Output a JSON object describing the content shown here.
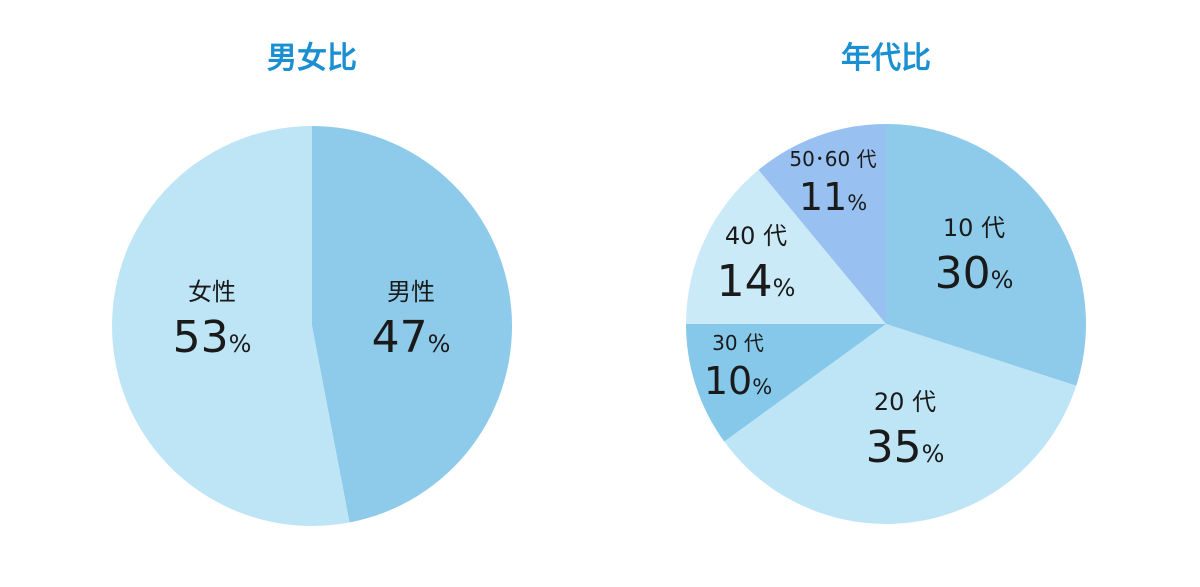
{
  "chart_data": [
    {
      "type": "pie",
      "title": "男女比",
      "slices": [
        {
          "label": "男性",
          "value": 47,
          "display": "47",
          "unit": "%",
          "color": "#8ecbea"
        },
        {
          "label": "女性",
          "value": 53,
          "display": "53",
          "unit": "%",
          "color": "#bee5f6"
        }
      ]
    },
    {
      "type": "pie",
      "title": "年代比",
      "slices": [
        {
          "label": "10 代",
          "value": 30,
          "display": "30",
          "unit": "%",
          "color": "#8ecbea"
        },
        {
          "label": "20 代",
          "value": 35,
          "display": "35",
          "unit": "%",
          "color": "#bee5f6"
        },
        {
          "label": "30 代",
          "value": 10,
          "display": "10",
          "unit": "%",
          "color": "#85c8ea"
        },
        {
          "label": "40 代",
          "value": 14,
          "display": "14",
          "unit": "%",
          "color": "#cbeaf8"
        },
        {
          "label": "50･60 代",
          "value": 11,
          "display": "11",
          "unit": "%",
          "color": "#98c0f0"
        }
      ]
    }
  ],
  "title_color": "#1a8fd1",
  "text_color": "#1a1a1a"
}
